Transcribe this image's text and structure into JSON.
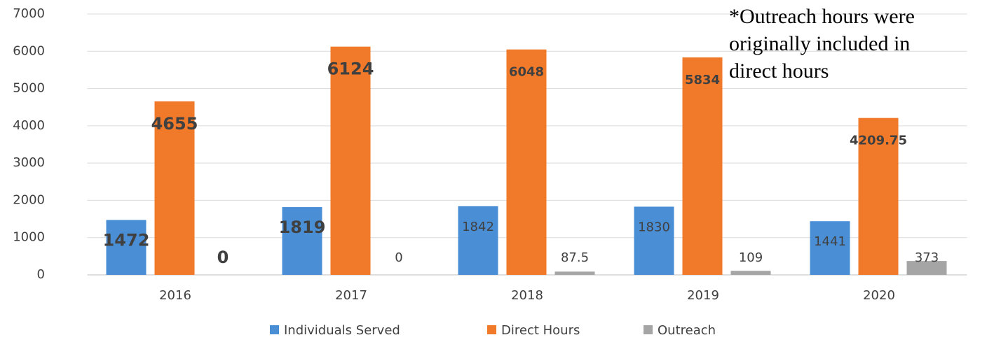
{
  "chart_data": {
    "type": "bar",
    "annotation": "*Outreach hours were originally included in direct hours",
    "categories": [
      "2016",
      "2017",
      "2018",
      "2019",
      "2020"
    ],
    "series": [
      {
        "name": "Individuals Served",
        "color": "#4a8fd6",
        "values": [
          1472,
          1819,
          1842,
          1830,
          1441
        ]
      },
      {
        "name": "Direct Hours",
        "color": "#f07a2a",
        "values": [
          4655,
          6124,
          6048,
          5834,
          4209.75
        ]
      },
      {
        "name": "Outreach",
        "color": "#a5a5a5",
        "values": [
          0,
          0,
          87.5,
          109,
          373
        ]
      }
    ],
    "ylim": [
      0,
      7000
    ],
    "yticks": [
      0,
      1000,
      2000,
      3000,
      4000,
      5000,
      6000,
      7000
    ],
    "grid": true
  }
}
